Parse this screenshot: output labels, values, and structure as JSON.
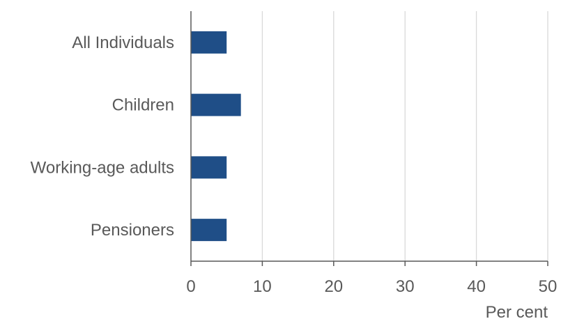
{
  "chart_data": {
    "type": "bar",
    "orientation": "horizontal",
    "categories": [
      "All Individuals",
      "Children",
      "Working-age adults",
      "Pensioners"
    ],
    "values": [
      5,
      7,
      5,
      5
    ],
    "xlabel": "Per cent",
    "ylabel": "",
    "title": "",
    "xlim": [
      0,
      50
    ],
    "xticks": [
      0,
      10,
      20,
      30,
      40,
      50
    ],
    "grid": "vertical",
    "bar_color": "#1f4e87",
    "grid_color": "#d9d9d9",
    "axis_color": "#595959"
  }
}
